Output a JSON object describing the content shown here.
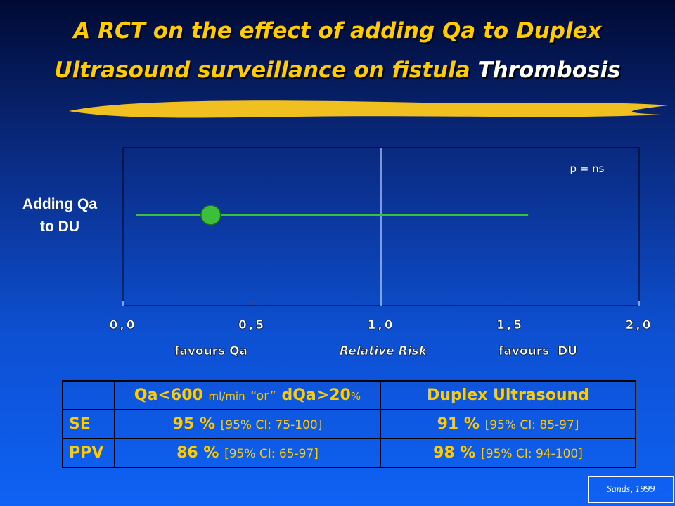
{
  "title_line1": "A RCT on the effect of adding Qa to Duplex",
  "title_line2": "Ultrasound surveillance on fistula",
  "title_emphasis": "Thrombosis",
  "chart_data": {
    "type": "forest",
    "categories": [
      "Adding Qa to DU"
    ],
    "values": [
      0.34
    ],
    "ci_low": [
      0.05
    ],
    "ci_high": [
      1.57
    ],
    "color": "#3cc03c",
    "reference_line": 1,
    "xlim": [
      0,
      2
    ],
    "xticks": [
      {
        "value": 0,
        "label": "0,0"
      },
      {
        "value": 0.5,
        "label": "0,5"
      },
      {
        "value": 1,
        "label": "1,0"
      },
      {
        "value": 1.5,
        "label": "1,5"
      },
      {
        "value": 2,
        "label": "2,0"
      }
    ],
    "annotation": "p = ns",
    "x_label_left": "favours Qa",
    "xlabel": "Relative Risk",
    "x_label_right": "favours  DU"
  },
  "table": {
    "header": [
      "Qa<600",
      "ml/min",
      "“or”",
      "dQa>20",
      "%",
      "Duplex Ultrasound"
    ],
    "rows": [
      {
        "label": "SE",
        "qa": "95 %",
        "qa_ci": "[95% CI: 75-100]",
        "du": "91 %",
        "du_ci": "[95% CI: 85-97]"
      },
      {
        "label": "PPV",
        "qa": "86 %",
        "qa_ci": "[95% CI: 65-97]",
        "du": "98 %",
        "du_ci": "[95% CI: 94-100]"
      }
    ]
  },
  "source": "Sands, 1999"
}
